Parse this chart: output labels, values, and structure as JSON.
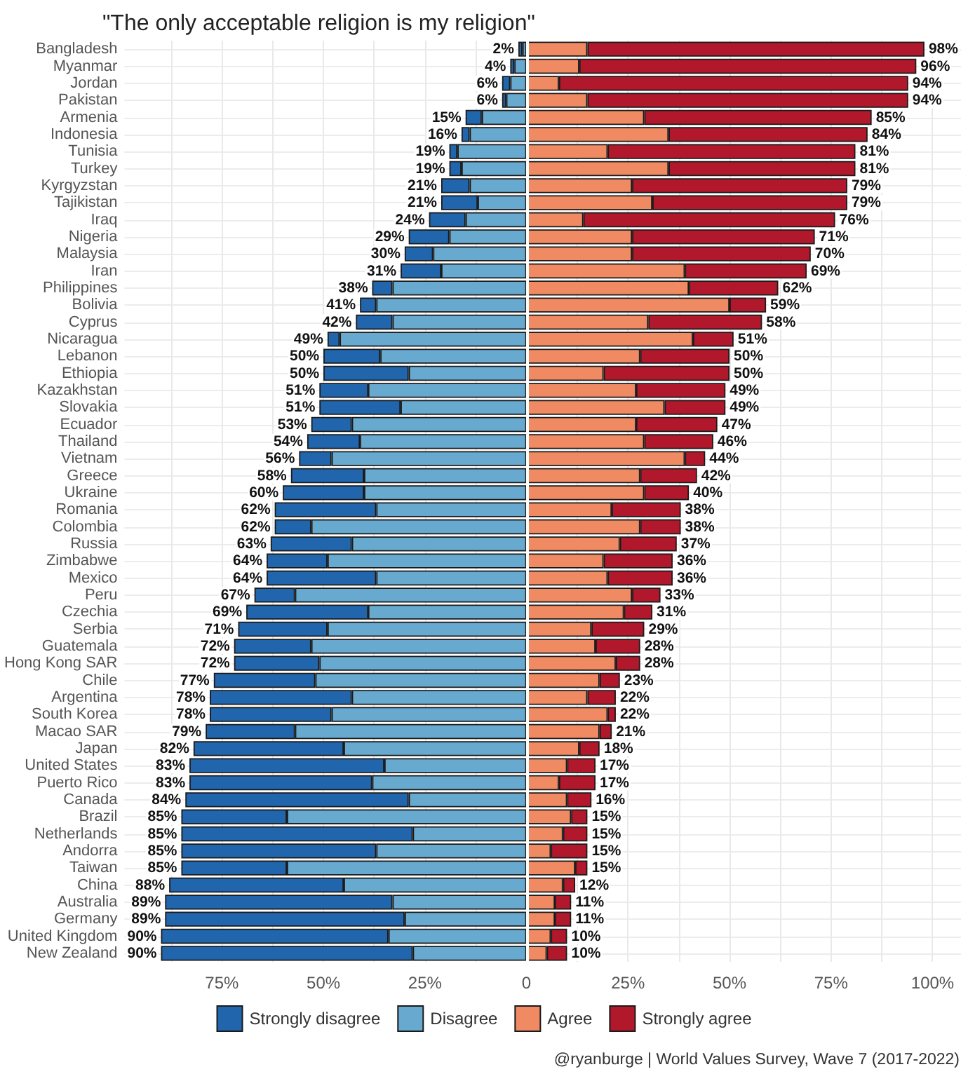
{
  "chart_data": {
    "type": "bar",
    "orientation": "horizontal",
    "stacked": true,
    "title": "\"The only acceptable religion is my religion\"",
    "annotations": [
      "@ryanburge | World Values Survey, Wave 7 (2017-2022)"
    ],
    "categories": [
      "Bangladesh",
      "Myanmar",
      "Jordan",
      "Pakistan",
      "Armenia",
      "Indonesia",
      "Tunisia",
      "Turkey",
      "Kyrgyzstan",
      "Tajikistan",
      "Iraq",
      "Nigeria",
      "Malaysia",
      "Iran",
      "Philippines",
      "Bolivia",
      "Cyprus",
      "Nicaragua",
      "Lebanon",
      "Ethiopia",
      "Kazakhstan",
      "Slovakia",
      "Ecuador",
      "Thailand",
      "Vietnam",
      "Greece",
      "Ukraine",
      "Romania",
      "Colombia",
      "Russia",
      "Zimbabwe",
      "Mexico",
      "Peru",
      "Czechia",
      "Serbia",
      "Guatemala",
      "Hong Kong SAR",
      "Chile",
      "Argentina",
      "South Korea",
      "Macao SAR",
      "Japan",
      "United States",
      "Puerto Rico",
      "Canada",
      "Brazil",
      "Netherlands",
      "Andorra",
      "Taiwan",
      "China",
      "Australia",
      "Germany",
      "United Kingdom",
      "New Zealand"
    ],
    "series": [
      {
        "name": "Disagree",
        "color": "#67a9cf",
        "values": [
          -1,
          -3,
          -4,
          -5,
          -11,
          -14,
          -17,
          -16,
          -14,
          -12,
          -15,
          -19,
          -23,
          -21,
          -33,
          -37,
          -33,
          -46,
          -36,
          -29,
          -39,
          -31,
          -43,
          -41,
          -48,
          -40,
          -40,
          -37,
          -53,
          -43,
          -49,
          -37,
          -57,
          -39,
          -49,
          -53,
          -51,
          -52,
          -43,
          -48,
          -57,
          -45,
          -35,
          -38,
          -29,
          -59,
          -28,
          -37,
          -59,
          -45,
          -33,
          -30,
          -34,
          -28
        ]
      },
      {
        "name": "Strongly disagree",
        "color": "#2166ac",
        "values": [
          -1,
          -1,
          -2,
          -1,
          -4,
          -2,
          -2,
          -3,
          -7,
          -9,
          -9,
          -10,
          -7,
          -10,
          -5,
          -4,
          -9,
          -3,
          -14,
          -21,
          -12,
          -20,
          -10,
          -13,
          -8,
          -18,
          -20,
          -25,
          -9,
          -20,
          -15,
          -27,
          -10,
          -30,
          -22,
          -19,
          -21,
          -25,
          -35,
          -30,
          -22,
          -37,
          -48,
          -45,
          -55,
          -26,
          -57,
          -48,
          -26,
          -43,
          -56,
          -59,
          -56,
          -62
        ]
      },
      {
        "name": "Agree",
        "color": "#ef8a62",
        "values": [
          15,
          13,
          8,
          15,
          29,
          35,
          20,
          35,
          26,
          31,
          14,
          26,
          26,
          39,
          40,
          50,
          30,
          41,
          28,
          19,
          27,
          34,
          27,
          29,
          39,
          28,
          29,
          21,
          28,
          23,
          19,
          20,
          26,
          24,
          16,
          17,
          22,
          18,
          15,
          20,
          18,
          13,
          10,
          8,
          10,
          11,
          9,
          6,
          12,
          9,
          7,
          7,
          6,
          5
        ]
      },
      {
        "name": "Strongly agree",
        "color": "#b2182b",
        "values": [
          83,
          83,
          86,
          79,
          56,
          49,
          61,
          46,
          53,
          48,
          62,
          45,
          44,
          30,
          22,
          9,
          28,
          10,
          22,
          31,
          22,
          15,
          20,
          17,
          5,
          14,
          11,
          17,
          10,
          14,
          17,
          16,
          7,
          7,
          13,
          11,
          6,
          5,
          7,
          2,
          3,
          5,
          7,
          9,
          6,
          4,
          6,
          9,
          3,
          3,
          4,
          4,
          4,
          5
        ]
      }
    ],
    "totals": [
      [
        "2%",
        "98%"
      ],
      [
        "4%",
        "96%"
      ],
      [
        "6%",
        "94%"
      ],
      [
        "6%",
        "94%"
      ],
      [
        "15%",
        "85%"
      ],
      [
        "16%",
        "84%"
      ],
      [
        "19%",
        "81%"
      ],
      [
        "19%",
        "81%"
      ],
      [
        "21%",
        "79%"
      ],
      [
        "21%",
        "79%"
      ],
      [
        "24%",
        "76%"
      ],
      [
        "29%",
        "71%"
      ],
      [
        "30%",
        "70%"
      ],
      [
        "31%",
        "69%"
      ],
      [
        "38%",
        "62%"
      ],
      [
        "41%",
        "59%"
      ],
      [
        "42%",
        "58%"
      ],
      [
        "49%",
        "51%"
      ],
      [
        "50%",
        "50%"
      ],
      [
        "50%",
        "50%"
      ],
      [
        "51%",
        "49%"
      ],
      [
        "51%",
        "49%"
      ],
      [
        "53%",
        "47%"
      ],
      [
        "54%",
        "46%"
      ],
      [
        "56%",
        "44%"
      ],
      [
        "58%",
        "42%"
      ],
      [
        "60%",
        "40%"
      ],
      [
        "62%",
        "38%"
      ],
      [
        "62%",
        "38%"
      ],
      [
        "63%",
        "37%"
      ],
      [
        "64%",
        "36%"
      ],
      [
        "64%",
        "36%"
      ],
      [
        "67%",
        "33%"
      ],
      [
        "69%",
        "31%"
      ],
      [
        "71%",
        "29%"
      ],
      [
        "72%",
        "28%"
      ],
      [
        "72%",
        "28%"
      ],
      [
        "77%",
        "23%"
      ],
      [
        "78%",
        "22%"
      ],
      [
        "78%",
        "22%"
      ],
      [
        "79%",
        "21%"
      ],
      [
        "82%",
        "18%"
      ],
      [
        "83%",
        "17%"
      ],
      [
        "83%",
        "17%"
      ],
      [
        "84%",
        "16%"
      ],
      [
        "85%",
        "15%"
      ],
      [
        "85%",
        "15%"
      ],
      [
        "85%",
        "15%"
      ],
      [
        "85%",
        "15%"
      ],
      [
        "88%",
        "12%"
      ],
      [
        "89%",
        "11%"
      ],
      [
        "89%",
        "11%"
      ],
      [
        "90%",
        "10%"
      ],
      [
        "90%",
        "10%"
      ]
    ],
    "xlim": [
      -99,
      107
    ],
    "xticks": [
      {
        "value": -87.5,
        "label": null
      },
      {
        "value": -75,
        "label": "75%"
      },
      {
        "value": -62.5,
        "label": null
      },
      {
        "value": -50,
        "label": "50%"
      },
      {
        "value": -37.5,
        "label": null
      },
      {
        "value": -25,
        "label": "25%"
      },
      {
        "value": -12.5,
        "label": null
      },
      0,
      {
        "value": 12.5,
        "label": null
      },
      {
        "value": 25,
        "label": "25%"
      },
      {
        "value": 37.5,
        "label": null
      },
      {
        "value": 50,
        "label": "50%"
      },
      {
        "value": 62.5,
        "label": null
      },
      {
        "value": 75,
        "label": "75%"
      },
      {
        "value": 87.5,
        "label": null
      },
      {
        "value": 100,
        "label": "100%"
      }
    ],
    "ref_lines": [
      {
        "axis": "x",
        "value": 0,
        "color": "#ffffff"
      }
    ],
    "grid": true,
    "legend": "bottom"
  }
}
